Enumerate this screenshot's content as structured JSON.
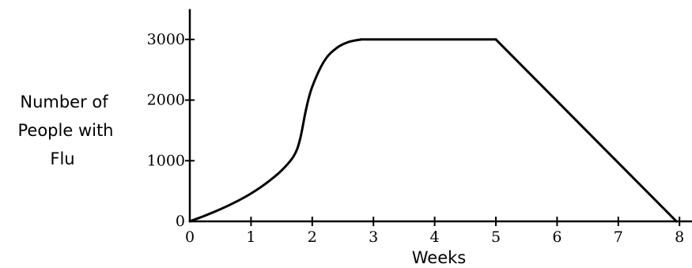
{
  "chart_data": {
    "type": "line",
    "title": "",
    "xlabel": "Weeks",
    "ylabel_lines": [
      "Number of",
      "People with",
      "Flu"
    ],
    "xlim": [
      0,
      8.25
    ],
    "ylim": [
      0,
      3500
    ],
    "xticks": [
      0,
      1,
      2,
      3,
      4,
      5,
      6,
      7,
      8
    ],
    "yticks": [
      0,
      1000,
      2000,
      3000
    ],
    "xtick_labels": [
      "0",
      "1",
      "2",
      "3",
      "4",
      "5",
      "6",
      "7",
      "8"
    ],
    "ytick_labels": [
      "0",
      "1000",
      "2000",
      "3000"
    ],
    "grid": false,
    "series": [
      {
        "segments": [
          {
            "x": [
              0,
              0.25,
              0.5,
              0.75,
              1.0,
              1.25,
              1.5,
              1.7,
              1.8,
              1.9,
              2.0,
              2.2,
              2.4,
              2.6,
              2.8
            ],
            "y": [
              0,
              95,
              200,
              320,
              460,
              630,
              840,
              1080,
              1350,
              1850,
              2220,
              2650,
              2860,
              2960,
              3000
            ]
          },
          {
            "x": [
              2.8,
              5
            ],
            "y": [
              3000,
              3000
            ]
          },
          {
            "x": [
              5,
              7.95
            ],
            "y": [
              3000,
              0
            ]
          }
        ]
      }
    ]
  }
}
